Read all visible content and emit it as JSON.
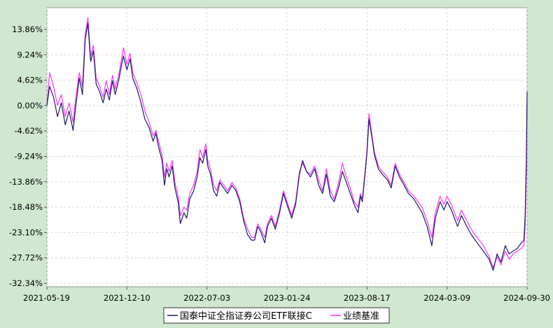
{
  "chart_data": {
    "type": "line",
    "title": "",
    "xlabel": "",
    "ylabel": "",
    "x_ticks": [
      "2021-05-19",
      "2021-12-10",
      "2022-07-03",
      "2023-01-24",
      "2023-08-17",
      "2024-03-09",
      "2024-09-30"
    ],
    "x_range": [
      "2021-05-19",
      "2024-09-30"
    ],
    "y_ticks": [
      13.86,
      9.24,
      4.62,
      0.0,
      -4.62,
      -9.24,
      -13.86,
      -18.48,
      -23.1,
      -27.72,
      -32.34
    ],
    "y_tick_labels": [
      "13.86%",
      "9.24%",
      "4.62%",
      "0.00%",
      "-4.62%",
      "-9.24%",
      "-13.86%",
      "-18.48%",
      "-23.10%",
      "-27.72%",
      "-32.34%"
    ],
    "ylim": [
      -32.34,
      16.0
    ],
    "grid": true,
    "legend_position": "bottom-center",
    "colors": {
      "fund": "#1a1a66",
      "benchmark": "#ff33ff"
    },
    "series": [
      {
        "name": "国泰中证全指证券公司ETF联接C",
        "color": "#1a1a66",
        "points": [
          [
            "2021-05-19",
            0.0
          ],
          [
            "2021-05-26",
            3.5
          ],
          [
            "2021-06-05",
            1.5
          ],
          [
            "2021-06-15",
            -2.0
          ],
          [
            "2021-06-25",
            0.5
          ],
          [
            "2021-07-05",
            -3.5
          ],
          [
            "2021-07-15",
            -1.0
          ],
          [
            "2021-07-25",
            -4.5
          ],
          [
            "2021-08-01",
            0.0
          ],
          [
            "2021-08-10",
            5.0
          ],
          [
            "2021-08-18",
            2.0
          ],
          [
            "2021-08-25",
            12.0
          ],
          [
            "2021-09-01",
            15.0
          ],
          [
            "2021-09-08",
            8.0
          ],
          [
            "2021-09-15",
            10.0
          ],
          [
            "2021-09-22",
            4.0
          ],
          [
            "2021-10-01",
            2.5
          ],
          [
            "2021-10-10",
            0.5
          ],
          [
            "2021-10-18",
            3.0
          ],
          [
            "2021-10-26",
            1.0
          ],
          [
            "2021-11-03",
            4.5
          ],
          [
            "2021-11-10",
            2.0
          ],
          [
            "2021-11-20",
            5.0
          ],
          [
            "2021-11-25",
            7.0
          ],
          [
            "2021-12-01",
            9.0
          ],
          [
            "2021-12-10",
            6.5
          ],
          [
            "2021-12-18",
            8.5
          ],
          [
            "2021-12-25",
            5.0
          ],
          [
            "2022-01-05",
            3.0
          ],
          [
            "2022-01-15",
            0.5
          ],
          [
            "2022-01-25",
            -2.5
          ],
          [
            "2022-02-05",
            -4.0
          ],
          [
            "2022-02-15",
            -6.5
          ],
          [
            "2022-02-22",
            -5.0
          ],
          [
            "2022-03-01",
            -7.5
          ],
          [
            "2022-03-10",
            -10.0
          ],
          [
            "2022-03-16",
            -14.5
          ],
          [
            "2022-03-22",
            -11.5
          ],
          [
            "2022-03-28",
            -13.0
          ],
          [
            "2022-04-05",
            -11.0
          ],
          [
            "2022-04-12",
            -15.0
          ],
          [
            "2022-04-20",
            -17.5
          ],
          [
            "2022-04-26",
            -21.5
          ],
          [
            "2022-05-05",
            -19.5
          ],
          [
            "2022-05-12",
            -20.5
          ],
          [
            "2022-05-20",
            -17.0
          ],
          [
            "2022-05-30",
            -15.5
          ],
          [
            "2022-06-08",
            -13.0
          ],
          [
            "2022-06-15",
            -9.5
          ],
          [
            "2022-06-22",
            -10.5
          ],
          [
            "2022-06-30",
            -8.0
          ],
          [
            "2022-07-05",
            -11.0
          ],
          [
            "2022-07-12",
            -12.5
          ],
          [
            "2022-07-20",
            -15.5
          ],
          [
            "2022-07-28",
            -16.5
          ],
          [
            "2022-08-05",
            -14.0
          ],
          [
            "2022-08-15",
            -15.0
          ],
          [
            "2022-08-25",
            -16.0
          ],
          [
            "2022-09-05",
            -14.5
          ],
          [
            "2022-09-15",
            -15.5
          ],
          [
            "2022-09-25",
            -17.5
          ],
          [
            "2022-10-05",
            -21.0
          ],
          [
            "2022-10-15",
            -23.5
          ],
          [
            "2022-10-25",
            -24.5
          ],
          [
            "2022-11-02",
            -24.5
          ],
          [
            "2022-11-10",
            -22.0
          ],
          [
            "2022-11-18",
            -23.0
          ],
          [
            "2022-11-28",
            -25.0
          ],
          [
            "2022-12-05",
            -22.0
          ],
          [
            "2022-12-15",
            -20.5
          ],
          [
            "2022-12-25",
            -22.5
          ],
          [
            "2023-01-05",
            -19.5
          ],
          [
            "2023-01-15",
            -16.0
          ],
          [
            "2023-01-24",
            -18.0
          ],
          [
            "2023-02-05",
            -20.5
          ],
          [
            "2023-02-15",
            -18.0
          ],
          [
            "2023-02-25",
            -12.5
          ],
          [
            "2023-03-05",
            -10.0
          ],
          [
            "2023-03-15",
            -12.0
          ],
          [
            "2023-03-25",
            -13.0
          ],
          [
            "2023-04-05",
            -11.5
          ],
          [
            "2023-04-15",
            -14.5
          ],
          [
            "2023-04-25",
            -16.0
          ],
          [
            "2023-05-05",
            -12.5
          ],
          [
            "2023-05-15",
            -16.5
          ],
          [
            "2023-05-25",
            -17.5
          ],
          [
            "2023-06-05",
            -15.0
          ],
          [
            "2023-06-15",
            -12.0
          ],
          [
            "2023-06-25",
            -14.0
          ],
          [
            "2023-07-05",
            -16.0
          ],
          [
            "2023-07-15",
            -18.0
          ],
          [
            "2023-07-25",
            -19.5
          ],
          [
            "2023-07-31",
            -16.5
          ],
          [
            "2023-08-05",
            -17.5
          ],
          [
            "2023-08-12",
            -12.5
          ],
          [
            "2023-08-17",
            -8.5
          ],
          [
            "2023-08-22",
            -2.5
          ],
          [
            "2023-08-29",
            -5.5
          ],
          [
            "2023-09-05",
            -9.0
          ],
          [
            "2023-09-15",
            -11.5
          ],
          [
            "2023-09-25",
            -12.5
          ],
          [
            "2023-10-08",
            -13.5
          ],
          [
            "2023-10-18",
            -15.0
          ],
          [
            "2023-10-28",
            -11.0
          ],
          [
            "2023-11-08",
            -13.0
          ],
          [
            "2023-11-20",
            -14.5
          ],
          [
            "2023-12-01",
            -16.0
          ],
          [
            "2023-12-15",
            -17.0
          ],
          [
            "2024-01-05",
            -19.5
          ],
          [
            "2024-01-18",
            -22.0
          ],
          [
            "2024-01-30",
            -25.5
          ],
          [
            "2024-02-08",
            -20.5
          ],
          [
            "2024-02-20",
            -17.5
          ],
          [
            "2024-03-01",
            -19.0
          ],
          [
            "2024-03-09",
            -17.5
          ],
          [
            "2024-03-20",
            -19.0
          ],
          [
            "2024-04-05",
            -22.0
          ],
          [
            "2024-04-15",
            -20.0
          ],
          [
            "2024-04-25",
            -21.5
          ],
          [
            "2024-05-10",
            -23.5
          ],
          [
            "2024-05-25",
            -25.0
          ],
          [
            "2024-06-10",
            -26.5
          ],
          [
            "2024-06-25",
            -28.0
          ],
          [
            "2024-07-05",
            -30.0
          ],
          [
            "2024-07-15",
            -27.0
          ],
          [
            "2024-07-25",
            -28.5
          ],
          [
            "2024-08-05",
            -25.5
          ],
          [
            "2024-08-15",
            -27.0
          ],
          [
            "2024-08-25",
            -26.5
          ],
          [
            "2024-09-05",
            -26.0
          ],
          [
            "2024-09-15",
            -25.0
          ],
          [
            "2024-09-22",
            -24.5
          ],
          [
            "2024-09-25",
            -20.0
          ],
          [
            "2024-09-28",
            -10.0
          ],
          [
            "2024-09-30",
            2.5
          ]
        ]
      },
      {
        "name": "业绩基准",
        "color": "#ff33ff",
        "points": [
          [
            "2021-05-19",
            0.0
          ],
          [
            "2021-05-26",
            6.0
          ],
          [
            "2021-06-05",
            3.5
          ],
          [
            "2021-06-15",
            0.0
          ],
          [
            "2021-06-25",
            2.0
          ],
          [
            "2021-07-05",
            -2.0
          ],
          [
            "2021-07-15",
            0.5
          ],
          [
            "2021-07-25",
            -3.0
          ],
          [
            "2021-08-01",
            1.5
          ],
          [
            "2021-08-10",
            6.0
          ],
          [
            "2021-08-18",
            3.5
          ],
          [
            "2021-08-25",
            13.0
          ],
          [
            "2021-09-01",
            16.0
          ],
          [
            "2021-09-08",
            9.0
          ],
          [
            "2021-09-15",
            11.0
          ],
          [
            "2021-09-22",
            5.0
          ],
          [
            "2021-10-01",
            3.5
          ],
          [
            "2021-10-10",
            1.5
          ],
          [
            "2021-10-18",
            4.5
          ],
          [
            "2021-10-26",
            2.0
          ],
          [
            "2021-11-03",
            5.5
          ],
          [
            "2021-11-10",
            3.0
          ],
          [
            "2021-11-20",
            6.0
          ],
          [
            "2021-11-25",
            8.0
          ],
          [
            "2021-12-01",
            10.5
          ],
          [
            "2021-12-10",
            7.5
          ],
          [
            "2021-12-18",
            9.5
          ],
          [
            "2021-12-25",
            6.0
          ],
          [
            "2022-01-05",
            4.0
          ],
          [
            "2022-01-15",
            2.0
          ],
          [
            "2022-01-25",
            -1.0
          ],
          [
            "2022-02-05",
            -3.0
          ],
          [
            "2022-02-15",
            -5.5
          ],
          [
            "2022-02-22",
            -4.5
          ],
          [
            "2022-03-01",
            -6.5
          ],
          [
            "2022-03-10",
            -9.0
          ],
          [
            "2022-03-16",
            -13.0
          ],
          [
            "2022-03-22",
            -10.5
          ],
          [
            "2022-03-28",
            -12.0
          ],
          [
            "2022-04-05",
            -10.0
          ],
          [
            "2022-04-12",
            -14.0
          ],
          [
            "2022-04-20",
            -16.5
          ],
          [
            "2022-04-26",
            -20.0
          ],
          [
            "2022-05-05",
            -18.5
          ],
          [
            "2022-05-12",
            -19.0
          ],
          [
            "2022-05-20",
            -16.0
          ],
          [
            "2022-05-30",
            -14.5
          ],
          [
            "2022-06-08",
            -12.0
          ],
          [
            "2022-06-15",
            -8.0
          ],
          [
            "2022-06-22",
            -9.5
          ],
          [
            "2022-06-30",
            -7.0
          ],
          [
            "2022-07-05",
            -10.0
          ],
          [
            "2022-07-12",
            -11.5
          ],
          [
            "2022-07-20",
            -14.5
          ],
          [
            "2022-07-28",
            -15.5
          ],
          [
            "2022-08-05",
            -13.5
          ],
          [
            "2022-08-15",
            -14.5
          ],
          [
            "2022-08-25",
            -15.5
          ],
          [
            "2022-09-05",
            -14.0
          ],
          [
            "2022-09-15",
            -15.0
          ],
          [
            "2022-09-25",
            -17.0
          ],
          [
            "2022-10-05",
            -20.5
          ],
          [
            "2022-10-15",
            -22.5
          ],
          [
            "2022-10-25",
            -24.0
          ],
          [
            "2022-11-02",
            -24.0
          ],
          [
            "2022-11-10",
            -21.5
          ],
          [
            "2022-11-18",
            -22.5
          ],
          [
            "2022-11-28",
            -24.0
          ],
          [
            "2022-12-05",
            -21.5
          ],
          [
            "2022-12-15",
            -20.0
          ],
          [
            "2022-12-25",
            -22.0
          ],
          [
            "2023-01-05",
            -19.0
          ],
          [
            "2023-01-15",
            -15.5
          ],
          [
            "2023-01-24",
            -17.5
          ],
          [
            "2023-02-05",
            -20.0
          ],
          [
            "2023-02-15",
            -17.5
          ],
          [
            "2023-02-25",
            -12.0
          ],
          [
            "2023-03-05",
            -10.5
          ],
          [
            "2023-03-15",
            -12.0
          ],
          [
            "2023-03-25",
            -12.5
          ],
          [
            "2023-04-05",
            -11.0
          ],
          [
            "2023-04-15",
            -13.5
          ],
          [
            "2023-04-25",
            -15.5
          ],
          [
            "2023-05-05",
            -11.5
          ],
          [
            "2023-05-15",
            -15.5
          ],
          [
            "2023-05-25",
            -17.0
          ],
          [
            "2023-06-05",
            -14.0
          ],
          [
            "2023-06-15",
            -10.5
          ],
          [
            "2023-06-25",
            -13.0
          ],
          [
            "2023-07-05",
            -15.0
          ],
          [
            "2023-07-15",
            -17.5
          ],
          [
            "2023-07-25",
            -18.5
          ],
          [
            "2023-07-31",
            -16.0
          ],
          [
            "2023-08-05",
            -17.0
          ],
          [
            "2023-08-12",
            -12.0
          ],
          [
            "2023-08-17",
            -8.0
          ],
          [
            "2023-08-22",
            -1.5
          ],
          [
            "2023-08-29",
            -5.0
          ],
          [
            "2023-09-05",
            -8.5
          ],
          [
            "2023-09-15",
            -11.0
          ],
          [
            "2023-09-25",
            -12.0
          ],
          [
            "2023-10-08",
            -13.0
          ],
          [
            "2023-10-18",
            -14.5
          ],
          [
            "2023-10-28",
            -10.5
          ],
          [
            "2023-11-08",
            -12.5
          ],
          [
            "2023-11-20",
            -14.0
          ],
          [
            "2023-12-01",
            -15.5
          ],
          [
            "2023-12-15",
            -16.5
          ],
          [
            "2024-01-05",
            -18.5
          ],
          [
            "2024-01-18",
            -21.0
          ],
          [
            "2024-01-30",
            -24.0
          ],
          [
            "2024-02-08",
            -19.5
          ],
          [
            "2024-02-20",
            -16.5
          ],
          [
            "2024-03-01",
            -18.0
          ],
          [
            "2024-03-09",
            -16.5
          ],
          [
            "2024-03-20",
            -18.0
          ],
          [
            "2024-04-05",
            -21.0
          ],
          [
            "2024-04-15",
            -19.0
          ],
          [
            "2024-04-25",
            -20.5
          ],
          [
            "2024-05-10",
            -22.5
          ],
          [
            "2024-05-25",
            -24.0
          ],
          [
            "2024-06-10",
            -25.5
          ],
          [
            "2024-06-25",
            -27.5
          ],
          [
            "2024-07-05",
            -29.5
          ],
          [
            "2024-07-15",
            -27.5
          ],
          [
            "2024-07-25",
            -29.0
          ],
          [
            "2024-08-05",
            -26.5
          ],
          [
            "2024-08-15",
            -28.0
          ],
          [
            "2024-08-25",
            -27.0
          ],
          [
            "2024-09-05",
            -26.5
          ],
          [
            "2024-09-15",
            -26.0
          ],
          [
            "2024-09-22",
            -25.5
          ],
          [
            "2024-09-25",
            -22.0
          ],
          [
            "2024-09-28",
            -12.0
          ],
          [
            "2024-09-30",
            0.5
          ]
        ]
      }
    ]
  }
}
